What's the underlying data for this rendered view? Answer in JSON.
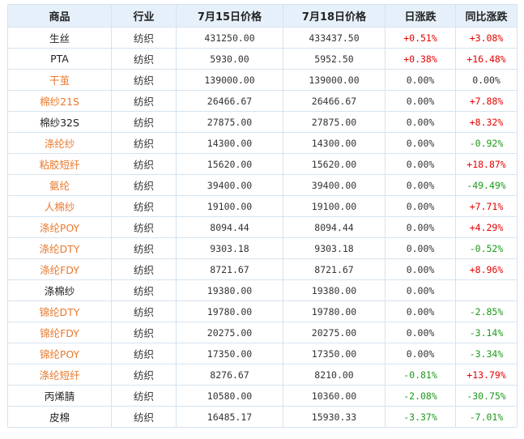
{
  "table": {
    "headers": [
      "商品",
      "行业",
      "7月15日价格",
      "7月18日价格",
      "日涨跌",
      "同比涨跌"
    ],
    "rows": [
      {
        "name": "生丝",
        "name_color": "black",
        "industry": "纺织",
        "p1": "431250.00",
        "p2": "433437.50",
        "daily": "+0.51%",
        "daily_sign": "pos",
        "yoy": "+3.08%",
        "yoy_sign": "pos"
      },
      {
        "name": "PTA",
        "name_color": "black",
        "industry": "纺织",
        "p1": "5930.00",
        "p2": "5952.50",
        "daily": "+0.38%",
        "daily_sign": "pos",
        "yoy": "+16.48%",
        "yoy_sign": "pos"
      },
      {
        "name": "干茧",
        "name_color": "orange",
        "industry": "纺织",
        "p1": "139000.00",
        "p2": "139000.00",
        "daily": "0.00%",
        "daily_sign": "zero",
        "yoy": "0.00%",
        "yoy_sign": "zero"
      },
      {
        "name": "棉纱21S",
        "name_color": "orange",
        "industry": "纺织",
        "p1": "26466.67",
        "p2": "26466.67",
        "daily": "0.00%",
        "daily_sign": "zero",
        "yoy": "+7.88%",
        "yoy_sign": "pos"
      },
      {
        "name": "棉纱32S",
        "name_color": "black",
        "industry": "纺织",
        "p1": "27875.00",
        "p2": "27875.00",
        "daily": "0.00%",
        "daily_sign": "zero",
        "yoy": "+8.32%",
        "yoy_sign": "pos"
      },
      {
        "name": "涤纶纱",
        "name_color": "orange",
        "industry": "纺织",
        "p1": "14300.00",
        "p2": "14300.00",
        "daily": "0.00%",
        "daily_sign": "zero",
        "yoy": "-0.92%",
        "yoy_sign": "neg"
      },
      {
        "name": "粘胶短纤",
        "name_color": "orange",
        "industry": "纺织",
        "p1": "15620.00",
        "p2": "15620.00",
        "daily": "0.00%",
        "daily_sign": "zero",
        "yoy": "+18.87%",
        "yoy_sign": "pos"
      },
      {
        "name": "氨纶",
        "name_color": "orange",
        "industry": "纺织",
        "p1": "39400.00",
        "p2": "39400.00",
        "daily": "0.00%",
        "daily_sign": "zero",
        "yoy": "-49.49%",
        "yoy_sign": "neg"
      },
      {
        "name": "人棉纱",
        "name_color": "orange",
        "industry": "纺织",
        "p1": "19100.00",
        "p2": "19100.00",
        "daily": "0.00%",
        "daily_sign": "zero",
        "yoy": "+7.71%",
        "yoy_sign": "pos"
      },
      {
        "name": "涤纶POY",
        "name_color": "orange",
        "industry": "纺织",
        "p1": "8094.44",
        "p2": "8094.44",
        "daily": "0.00%",
        "daily_sign": "zero",
        "yoy": "+4.29%",
        "yoy_sign": "pos"
      },
      {
        "name": "涤纶DTY",
        "name_color": "orange",
        "industry": "纺织",
        "p1": "9303.18",
        "p2": "9303.18",
        "daily": "0.00%",
        "daily_sign": "zero",
        "yoy": "-0.52%",
        "yoy_sign": "neg"
      },
      {
        "name": "涤纶FDY",
        "name_color": "orange",
        "industry": "纺织",
        "p1": "8721.67",
        "p2": "8721.67",
        "daily": "0.00%",
        "daily_sign": "zero",
        "yoy": "+8.96%",
        "yoy_sign": "pos"
      },
      {
        "name": "涤棉纱",
        "name_color": "black",
        "industry": "纺织",
        "p1": "19380.00",
        "p2": "19380.00",
        "daily": "0.00%",
        "daily_sign": "zero",
        "yoy": "",
        "yoy_sign": "zero"
      },
      {
        "name": "锦纶DTY",
        "name_color": "orange",
        "industry": "纺织",
        "p1": "19780.00",
        "p2": "19780.00",
        "daily": "0.00%",
        "daily_sign": "zero",
        "yoy": "-2.85%",
        "yoy_sign": "neg"
      },
      {
        "name": "锦纶FDY",
        "name_color": "orange",
        "industry": "纺织",
        "p1": "20275.00",
        "p2": "20275.00",
        "daily": "0.00%",
        "daily_sign": "zero",
        "yoy": "-3.14%",
        "yoy_sign": "neg"
      },
      {
        "name": "锦纶POY",
        "name_color": "orange",
        "industry": "纺织",
        "p1": "17350.00",
        "p2": "17350.00",
        "daily": "0.00%",
        "daily_sign": "zero",
        "yoy": "-3.34%",
        "yoy_sign": "neg"
      },
      {
        "name": "涤纶短纤",
        "name_color": "orange",
        "industry": "纺织",
        "p1": "8276.67",
        "p2": "8210.00",
        "daily": "-0.81%",
        "daily_sign": "neg",
        "yoy": "+13.79%",
        "yoy_sign": "pos"
      },
      {
        "name": "丙烯腈",
        "name_color": "black",
        "industry": "纺织",
        "p1": "10580.00",
        "p2": "10360.00",
        "daily": "-2.08%",
        "daily_sign": "neg",
        "yoy": "-30.75%",
        "yoy_sign": "neg"
      },
      {
        "name": "皮棉",
        "name_color": "black",
        "industry": "纺织",
        "p1": "16485.17",
        "p2": "15930.33",
        "daily": "-3.37%",
        "daily_sign": "neg",
        "yoy": "-7.01%",
        "yoy_sign": "neg"
      }
    ]
  },
  "colors": {
    "header_bg": "#e6f0fa",
    "border": "#d6e3ef",
    "positive": "#e60000",
    "negative": "#1a9a1a",
    "link_orange": "#e8792c"
  }
}
